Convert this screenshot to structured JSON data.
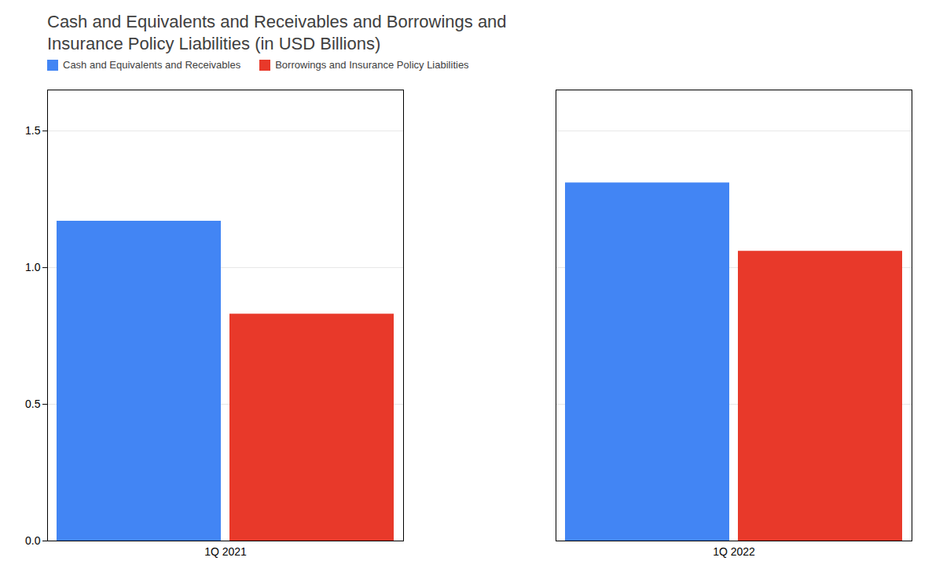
{
  "chart_data": {
    "type": "bar",
    "title": "Cash and Equivalents and Receivables and Borrowings and\nInsurance Policy Liabilities (in USD Billions)",
    "categories": [
      "1Q 2021",
      "1Q 2022"
    ],
    "series": [
      {
        "name": "Cash and Equivalents and Receivables",
        "color": "#4285F4",
        "values": [
          1.17,
          1.31
        ]
      },
      {
        "name": "Borrowings and Insurance Policy Liabilities",
        "color": "#E8392A",
        "values": [
          0.83,
          1.06
        ]
      }
    ],
    "ylim": [
      0,
      1.65
    ],
    "yticks": [
      {
        "value": 0.0,
        "label": "0.0"
      },
      0.5,
      {
        "value": 1.0,
        "label": "1.0"
      },
      1.5
    ],
    "grid": true,
    "legend": "upper left"
  }
}
